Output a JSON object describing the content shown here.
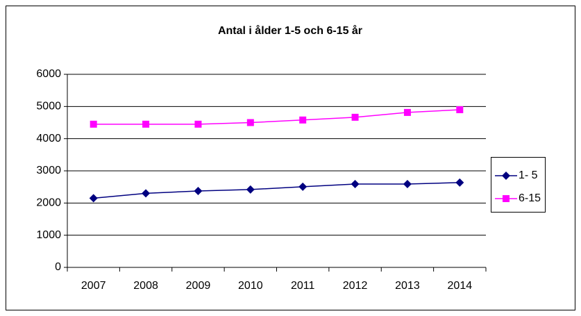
{
  "chart_data": {
    "type": "line",
    "title": "Antal i ålder 1-5 och 6-15 år",
    "categories": [
      "2007",
      "2008",
      "2009",
      "2010",
      "2011",
      "2012",
      "2013",
      "2014"
    ],
    "series": [
      {
        "name": "1- 5",
        "color": "#000080",
        "marker": "diamond",
        "values": [
          2150,
          2300,
          2375,
          2420,
          2505,
          2590,
          2590,
          2635
        ]
      },
      {
        "name": "6-15",
        "color": "#ff00ff",
        "marker": "square",
        "values": [
          4450,
          4450,
          4450,
          4500,
          4580,
          4665,
          4815,
          4900
        ]
      }
    ],
    "ylim": [
      0,
      6000
    ],
    "yticks": [
      0,
      1000,
      2000,
      3000,
      4000,
      5000,
      6000
    ],
    "grid": true,
    "legend": "right"
  }
}
